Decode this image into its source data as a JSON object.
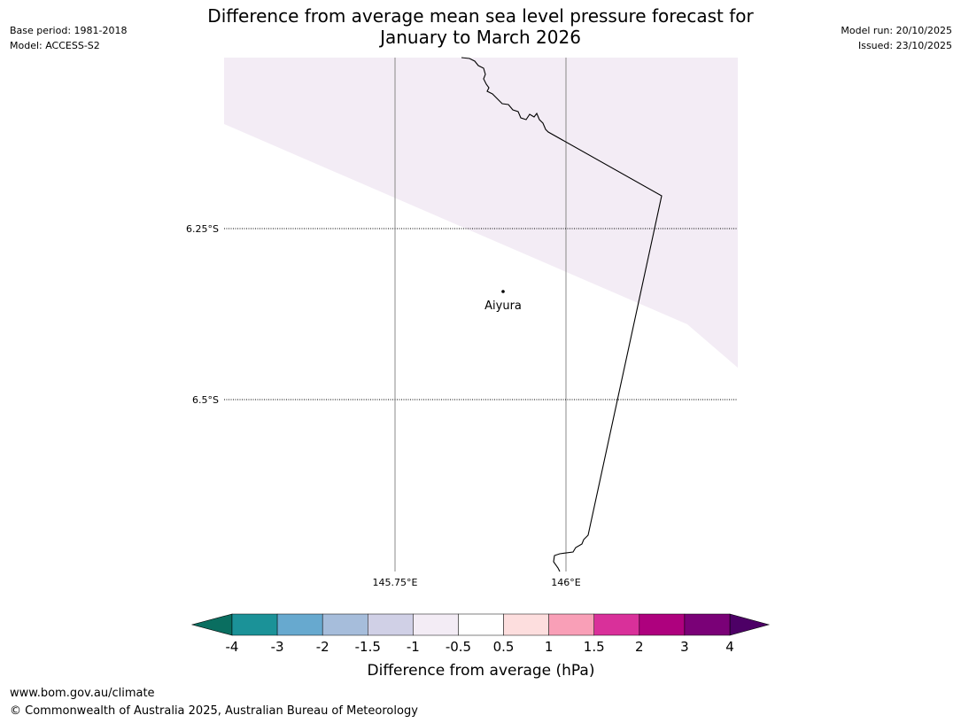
{
  "header": {
    "title_line1": "Difference from average mean sea level pressure forecast for",
    "title_line2": "January to March 2026",
    "base_period": "Base period: 1981-2018",
    "model": "Model: ACCESS-S2",
    "model_run": "Model run: 20/10/2025",
    "issued": "Issued: 23/10/2025"
  },
  "map": {
    "latitude_labels": [
      "6.25°S",
      "6.5°S"
    ],
    "longitude_labels": [
      "145.75°E",
      "146°E"
    ],
    "place": {
      "name": "Aiyura"
    },
    "shaded_region": {
      "category": "-1 to -0.5",
      "color": "#f3ecf5"
    }
  },
  "colorbar": {
    "label": "Difference from average (hPa)",
    "ticks": [
      "-4",
      "-3",
      "-2",
      "-1.5",
      "-1",
      "-0.5",
      "0.5",
      "1",
      "1.5",
      "2",
      "3",
      "4"
    ],
    "under_color": "#0a6e60",
    "over_color": "#4d0066",
    "bin_colors": [
      "#1b9298",
      "#67a9cf",
      "#a6bddb",
      "#d0d0e6",
      "#f3ecf5",
      "#ffffff",
      "#fddede",
      "#f99fb7",
      "#d9309a",
      "#ae017e",
      "#7a0177"
    ]
  },
  "footer": {
    "url": "www.bom.gov.au/climate",
    "copyright": "© Commonwealth of Australia 2025, Australian Bureau of Meteorology"
  }
}
